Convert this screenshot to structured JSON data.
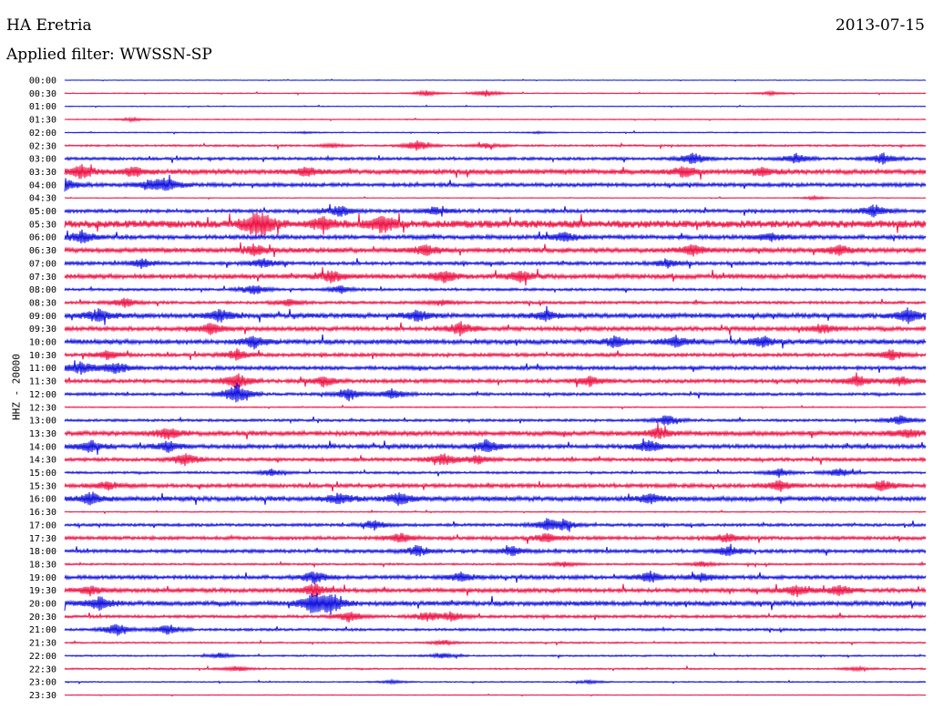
{
  "header": {
    "station": "HA Eretria",
    "date": "2013-07-15",
    "filter": "Applied filter: WWSSN-SP"
  },
  "channel_label": "HHZ - 20000",
  "colors": {
    "blue": "#1010e0",
    "red": "#ee1144"
  },
  "chart_data": {
    "type": "line",
    "title": "HA Eretria",
    "subtitle": "Applied filter: WWSSN-SP",
    "ylabel": "HHZ - 20000",
    "series_colors_alternate": [
      "blue",
      "red"
    ],
    "rows": [
      {
        "label": "00:00",
        "amp": 0.3,
        "bursts": []
      },
      {
        "label": "00:30",
        "amp": 0.5,
        "bursts": [
          [
            0.42,
            3
          ],
          [
            0.49,
            4
          ],
          [
            0.82,
            2
          ]
        ]
      },
      {
        "label": "01:00",
        "amp": 0.4,
        "bursts": []
      },
      {
        "label": "01:30",
        "amp": 0.5,
        "bursts": [
          [
            0.08,
            2
          ]
        ]
      },
      {
        "label": "02:00",
        "amp": 0.5,
        "bursts": [
          [
            0.28,
            1
          ],
          [
            0.55,
            1
          ]
        ]
      },
      {
        "label": "02:30",
        "amp": 1.0,
        "bursts": [
          [
            0.41,
            6
          ],
          [
            0.49,
            3
          ],
          [
            0.31,
            2
          ]
        ]
      },
      {
        "label": "03:00",
        "amp": 1.5,
        "bursts": [
          [
            0.73,
            7
          ],
          [
            0.85,
            6
          ],
          [
            0.95,
            6
          ]
        ]
      },
      {
        "label": "03:30",
        "amp": 2.5,
        "bursts": [
          [
            0.02,
            8
          ],
          [
            0.08,
            6
          ],
          [
            0.28,
            5
          ],
          [
            0.72,
            6
          ],
          [
            0.81,
            5
          ]
        ]
      },
      {
        "label": "04:00",
        "amp": 2.0,
        "bursts": [
          [
            0.0,
            7
          ],
          [
            0.1,
            5
          ],
          [
            0.12,
            7
          ]
        ]
      },
      {
        "label": "04:30",
        "amp": 0.4,
        "bursts": [
          [
            0.87,
            2
          ]
        ]
      },
      {
        "label": "05:00",
        "amp": 1.8,
        "bursts": [
          [
            0.32,
            6
          ],
          [
            0.43,
            5
          ],
          [
            0.94,
            7
          ]
        ]
      },
      {
        "label": "05:30",
        "amp": 4.0,
        "bursts": [
          [
            0.22,
            8
          ],
          [
            0.23,
            9
          ],
          [
            0.37,
            9
          ],
          [
            0.3,
            6
          ]
        ]
      },
      {
        "label": "06:00",
        "amp": 2.2,
        "bursts": [
          [
            0.02,
            7
          ],
          [
            0.58,
            6
          ],
          [
            0.82,
            5
          ]
        ]
      },
      {
        "label": "06:30",
        "amp": 2.5,
        "bursts": [
          [
            0.22,
            6
          ],
          [
            0.42,
            6
          ],
          [
            0.73,
            6
          ],
          [
            0.9,
            5
          ]
        ]
      },
      {
        "label": "07:00",
        "amp": 1.8,
        "bursts": [
          [
            0.09,
            5
          ],
          [
            0.23,
            5
          ],
          [
            0.7,
            5
          ]
        ]
      },
      {
        "label": "07:30",
        "amp": 2.5,
        "bursts": [
          [
            0.31,
            6
          ],
          [
            0.44,
            7
          ],
          [
            0.53,
            6
          ]
        ]
      },
      {
        "label": "08:00",
        "amp": 1.3,
        "bursts": [
          [
            0.22,
            6
          ],
          [
            0.32,
            4
          ]
        ]
      },
      {
        "label": "08:30",
        "amp": 1.5,
        "bursts": [
          [
            0.07,
            5
          ],
          [
            0.26,
            4
          ],
          [
            0.44,
            3
          ]
        ]
      },
      {
        "label": "09:00",
        "amp": 2.5,
        "bursts": [
          [
            0.04,
            8
          ],
          [
            0.18,
            7
          ],
          [
            0.41,
            6
          ],
          [
            0.56,
            5
          ],
          [
            0.98,
            8
          ]
        ]
      },
      {
        "label": "09:30",
        "amp": 2.2,
        "bursts": [
          [
            0.17,
            6
          ],
          [
            0.46,
            7
          ],
          [
            0.88,
            5
          ]
        ]
      },
      {
        "label": "10:00",
        "amp": 2.5,
        "bursts": [
          [
            0.22,
            7
          ],
          [
            0.64,
            6
          ],
          [
            0.71,
            6
          ],
          [
            0.81,
            6
          ]
        ]
      },
      {
        "label": "10:30",
        "amp": 1.8,
        "bursts": [
          [
            0.05,
            5
          ],
          [
            0.2,
            6
          ],
          [
            0.96,
            6
          ]
        ]
      },
      {
        "label": "11:00",
        "amp": 2.0,
        "bursts": [
          [
            0.02,
            7
          ],
          [
            0.06,
            7
          ]
        ]
      },
      {
        "label": "11:30",
        "amp": 2.0,
        "bursts": [
          [
            0.2,
            9
          ],
          [
            0.3,
            6
          ],
          [
            0.61,
            6
          ],
          [
            0.92,
            6
          ],
          [
            0.97,
            5
          ]
        ]
      },
      {
        "label": "12:00",
        "amp": 1.5,
        "bursts": [
          [
            0.2,
            12
          ],
          [
            0.33,
            7
          ],
          [
            0.38,
            6
          ]
        ]
      },
      {
        "label": "12:30",
        "amp": 0.6,
        "bursts": []
      },
      {
        "label": "13:00",
        "amp": 1.3,
        "bursts": [
          [
            0.7,
            6
          ],
          [
            0.97,
            6
          ]
        ]
      },
      {
        "label": "13:30",
        "amp": 2.5,
        "bursts": [
          [
            0.12,
            6
          ],
          [
            0.69,
            6
          ],
          [
            0.98,
            5
          ]
        ]
      },
      {
        "label": "14:00",
        "amp": 2.2,
        "bursts": [
          [
            0.03,
            7
          ],
          [
            0.12,
            6
          ],
          [
            0.49,
            7
          ],
          [
            0.68,
            7
          ]
        ]
      },
      {
        "label": "14:30",
        "amp": 1.8,
        "bursts": [
          [
            0.14,
            7
          ],
          [
            0.44,
            7
          ],
          [
            0.48,
            5
          ]
        ]
      },
      {
        "label": "15:00",
        "amp": 1.2,
        "bursts": [
          [
            0.24,
            4
          ],
          [
            0.83,
            5
          ],
          [
            0.9,
            5
          ]
        ]
      },
      {
        "label": "15:30",
        "amp": 2.0,
        "bursts": [
          [
            0.05,
            5
          ],
          [
            0.83,
            6
          ],
          [
            0.95,
            6
          ]
        ]
      },
      {
        "label": "16:00",
        "amp": 2.5,
        "bursts": [
          [
            0.03,
            7
          ],
          [
            0.32,
            7
          ],
          [
            0.39,
            7
          ],
          [
            0.68,
            6
          ]
        ]
      },
      {
        "label": "16:30",
        "amp": 0.6,
        "bursts": []
      },
      {
        "label": "17:00",
        "amp": 1.5,
        "bursts": [
          [
            0.36,
            5
          ],
          [
            0.56,
            6
          ],
          [
            0.58,
            6
          ]
        ]
      },
      {
        "label": "17:30",
        "amp": 1.8,
        "bursts": [
          [
            0.39,
            6
          ],
          [
            0.56,
            5
          ],
          [
            0.77,
            5
          ]
        ]
      },
      {
        "label": "18:00",
        "amp": 1.8,
        "bursts": [
          [
            0.41,
            6
          ],
          [
            0.52,
            5
          ],
          [
            0.77,
            6
          ]
        ]
      },
      {
        "label": "18:30",
        "amp": 1.0,
        "bursts": [
          [
            0.58,
            3
          ],
          [
            0.74,
            3
          ]
        ]
      },
      {
        "label": "19:00",
        "amp": 2.0,
        "bursts": [
          [
            0.29,
            7
          ],
          [
            0.46,
            5
          ],
          [
            0.68,
            6
          ],
          [
            0.74,
            5
          ]
        ]
      },
      {
        "label": "19:30",
        "amp": 2.2,
        "bursts": [
          [
            0.03,
            5
          ],
          [
            0.29,
            7
          ],
          [
            0.85,
            6
          ],
          [
            0.9,
            6
          ]
        ]
      },
      {
        "label": "20:00",
        "amp": 2.5,
        "bursts": [
          [
            0.04,
            7
          ],
          [
            0.29,
            12
          ],
          [
            0.31,
            10
          ]
        ]
      },
      {
        "label": "20:30",
        "amp": 1.5,
        "bursts": [
          [
            0.33,
            6
          ],
          [
            0.42,
            5
          ],
          [
            0.45,
            5
          ]
        ]
      },
      {
        "label": "21:00",
        "amp": 1.3,
        "bursts": [
          [
            0.06,
            7
          ],
          [
            0.12,
            6
          ]
        ]
      },
      {
        "label": "21:30",
        "amp": 0.8,
        "bursts": [
          [
            0.44,
            3
          ]
        ]
      },
      {
        "label": "22:00",
        "amp": 0.8,
        "bursts": [
          [
            0.18,
            3
          ],
          [
            0.44,
            3
          ]
        ]
      },
      {
        "label": "22:30",
        "amp": 0.8,
        "bursts": [
          [
            0.2,
            3
          ],
          [
            0.92,
            2
          ]
        ]
      },
      {
        "label": "23:00",
        "amp": 0.6,
        "bursts": [
          [
            0.38,
            2
          ],
          [
            0.61,
            2
          ]
        ]
      },
      {
        "label": "23:30",
        "amp": 0.4,
        "bursts": []
      }
    ]
  }
}
